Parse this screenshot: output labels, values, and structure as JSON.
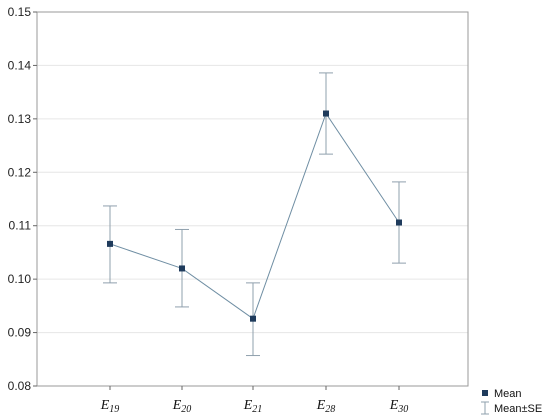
{
  "chart_data": {
    "type": "line",
    "title": "",
    "xlabel": "",
    "ylabel": "",
    "categories": [
      {
        "base": "E",
        "sub": "19"
      },
      {
        "base": "E",
        "sub": "20"
      },
      {
        "base": "E",
        "sub": "21"
      },
      {
        "base": "E",
        "sub": "28"
      },
      {
        "base": "E",
        "sub": "30"
      }
    ],
    "series": [
      {
        "name": "Mean",
        "values": [
          0.1066,
          0.102,
          0.0926,
          0.131,
          0.1106
        ],
        "lower": [
          0.0993,
          0.0948,
          0.0857,
          0.1234,
          0.103
        ],
        "upper": [
          0.1137,
          0.1093,
          0.0993,
          0.1386,
          0.1182
        ]
      }
    ],
    "error_bar_label": "Mean±SE",
    "ylim": [
      0.08,
      0.15
    ],
    "yticks": [
      "0.08",
      "0.09",
      "0.10",
      "0.11",
      "0.12",
      "0.13",
      "0.14",
      "0.15"
    ],
    "grid": true,
    "legend_position": "bottom-right",
    "colors": {
      "mean": "#1f3b5c",
      "line": "#6f8ea3",
      "error": "#8fa0ad",
      "grid": "#e6e6e6",
      "frame": "#9a9a9a"
    }
  }
}
